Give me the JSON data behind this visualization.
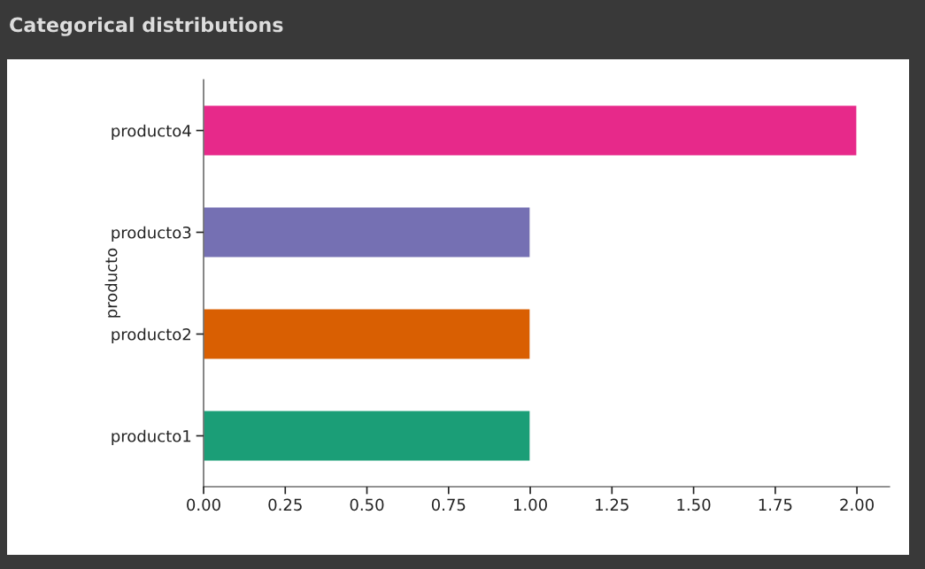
{
  "chart_data": {
    "type": "bar",
    "orientation": "horizontal",
    "title": "Categorical distributions",
    "ylabel": "producto",
    "categories": [
      "producto4",
      "producto3",
      "producto2",
      "producto1"
    ],
    "values": [
      2,
      1,
      1,
      1
    ],
    "colors": [
      "#e7298a",
      "#7570b3",
      "#d95f02",
      "#1b9e77"
    ],
    "xlim": [
      0,
      2.1
    ],
    "xticks": [
      {
        "value": 0,
        "label": "0.00"
      },
      {
        "value": 0.25,
        "label": "0.25"
      },
      {
        "value": 0.5,
        "label": "0.50"
      },
      {
        "value": 0.75,
        "label": "0.75"
      },
      {
        "value": 1,
        "label": "1.00"
      },
      {
        "value": 1.25,
        "label": "1.25"
      },
      {
        "value": 1.5,
        "label": "1.50"
      },
      {
        "value": 1.75,
        "label": "1.75"
      },
      {
        "value": 2,
        "label": "2.00"
      }
    ],
    "grid": false,
    "legend": false
  }
}
